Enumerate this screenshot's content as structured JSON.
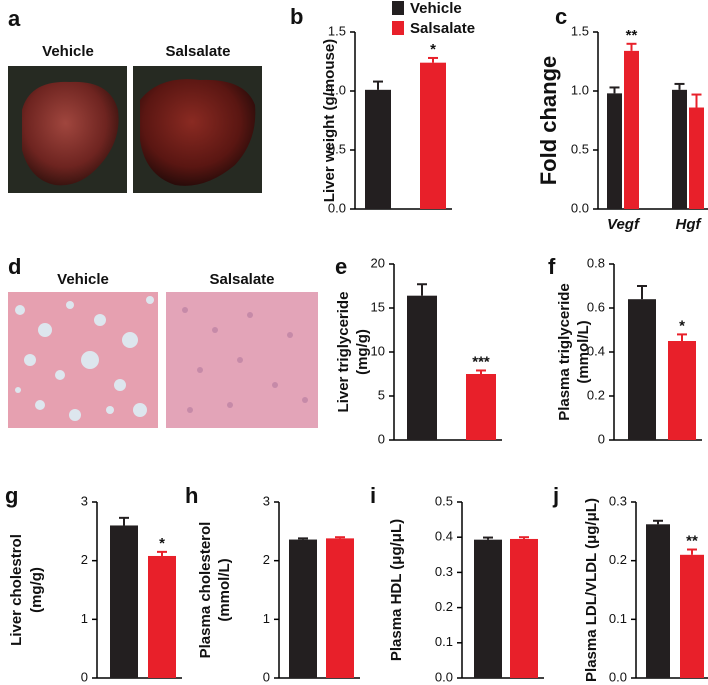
{
  "image_panels": [
    {
      "letter": "a",
      "labels": [
        "Vehicle",
        "Salsalate"
      ]
    },
    {
      "letter": "d",
      "labels": [
        "Vehicle",
        "Salsalate"
      ]
    }
  ],
  "chart_data": [
    {
      "type": "bar",
      "letter": "b",
      "ylabel": [
        "Liver weight (g/mouse)"
      ],
      "legend": true,
      "ylim": [
        0,
        1.5
      ],
      "yticks": [
        {
          "value": 0,
          "label": "0.0"
        },
        0.5,
        {
          "value": 1,
          "label": "1.0"
        },
        1.5
      ],
      "series": [
        {
          "name": "Vehicle",
          "color": "#231f20",
          "values": [
            1.01
          ],
          "errors": [
            0.07
          ]
        },
        {
          "name": "Salsalate",
          "color": "#e8202a",
          "values": [
            1.24
          ],
          "errors": [
            0.04
          ],
          "significance": [
            "*"
          ]
        }
      ]
    },
    {
      "type": "bar",
      "letter": "c",
      "ylabel": [
        "Fold change"
      ],
      "categories": [
        "Vegf",
        "Hgf"
      ],
      "ylim": [
        0,
        1.5
      ],
      "yticks": [
        {
          "value": 0,
          "label": "0.0"
        },
        0.5,
        {
          "value": 1,
          "label": "1.0"
        },
        1.5
      ],
      "series": [
        {
          "color": "#231f20",
          "values": [
            0.98,
            1.01
          ],
          "errors": [
            0.05,
            0.05
          ]
        },
        {
          "color": "#e8202a",
          "values": [
            1.34,
            0.86
          ],
          "errors": [
            0.06,
            0.11
          ],
          "significance": [
            "**",
            null
          ]
        }
      ]
    },
    {
      "type": "bar",
      "letter": "e",
      "ylabel": [
        "Liver triglyceride",
        "(mg/g)"
      ],
      "ylim": [
        0,
        20
      ],
      "yticks": [
        0,
        5,
        10,
        15,
        20
      ],
      "series": [
        {
          "color": "#231f20",
          "values": [
            16.4
          ],
          "errors": [
            1.3
          ]
        },
        {
          "color": "#e8202a",
          "values": [
            7.5
          ],
          "errors": [
            0.4
          ],
          "significance": [
            "***"
          ]
        }
      ]
    },
    {
      "type": "bar",
      "letter": "f",
      "ylabel": [
        "Plasma triglyceride",
        "(mmol/L)"
      ],
      "ylim": [
        0,
        0.8
      ],
      "yticks": [
        0,
        0.2,
        0.4,
        0.6,
        0.8
      ],
      "series": [
        {
          "color": "#231f20",
          "values": [
            0.64
          ],
          "errors": [
            0.06
          ]
        },
        {
          "color": "#e8202a",
          "values": [
            0.45
          ],
          "errors": [
            0.03
          ],
          "significance": [
            "*"
          ]
        }
      ]
    },
    {
      "type": "bar",
      "letter": "g",
      "ylabel": [
        "Liver cholestrol",
        "(mg/g)"
      ],
      "ylim": [
        0,
        3
      ],
      "yticks": [
        0,
        1,
        2,
        3
      ],
      "series": [
        {
          "color": "#231f20",
          "values": [
            2.6
          ],
          "errors": [
            0.13
          ]
        },
        {
          "color": "#e8202a",
          "values": [
            2.08
          ],
          "errors": [
            0.07
          ],
          "significance": [
            "*"
          ]
        }
      ]
    },
    {
      "type": "bar",
      "letter": "h",
      "ylabel": [
        "Plasma cholesterol",
        "(mmol/L)"
      ],
      "ylim": [
        0,
        3
      ],
      "yticks": [
        0,
        1,
        2,
        3
      ],
      "series": [
        {
          "color": "#231f20",
          "values": [
            2.36
          ],
          "errors": [
            0.02
          ]
        },
        {
          "color": "#e8202a",
          "values": [
            2.38
          ],
          "errors": [
            0.02
          ]
        }
      ]
    },
    {
      "type": "bar",
      "letter": "i",
      "ylabel": [
        "Plasma HDL (μg/μL)"
      ],
      "ylim": [
        0,
        0.5
      ],
      "yticks": [
        {
          "value": 0,
          "label": "0.0"
        },
        0.1,
        0.2,
        0.3,
        0.4,
        0.5
      ],
      "series": [
        {
          "color": "#231f20",
          "values": [
            0.393
          ],
          "errors": [
            0.006
          ]
        },
        {
          "color": "#e8202a",
          "values": [
            0.395
          ],
          "errors": [
            0.005
          ]
        }
      ]
    },
    {
      "type": "bar",
      "letter": "j",
      "ylabel": [
        "Plasma LDL/VLDL (μg/μL)"
      ],
      "ylim": [
        0,
        0.3
      ],
      "yticks": [
        {
          "value": 0,
          "label": "0.0"
        },
        0.1,
        0.2,
        0.3
      ],
      "series": [
        {
          "color": "#231f20",
          "values": [
            0.262
          ],
          "errors": [
            0.006
          ]
        },
        {
          "color": "#e8202a",
          "values": [
            0.21
          ],
          "errors": [
            0.009
          ],
          "significance": [
            "**"
          ]
        }
      ]
    }
  ]
}
